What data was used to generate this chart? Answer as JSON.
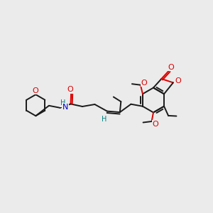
{
  "bg_color": "#ebebeb",
  "bond_color": "#1a1a1a",
  "oxygen_color": "#dd0000",
  "nitrogen_color": "#0000cc",
  "hydrogen_color": "#008080",
  "lw": 1.4,
  "figsize": [
    3.0,
    3.0
  ],
  "dpi": 100,
  "xlim": [
    0,
    10
  ],
  "ylim": [
    0,
    10
  ]
}
